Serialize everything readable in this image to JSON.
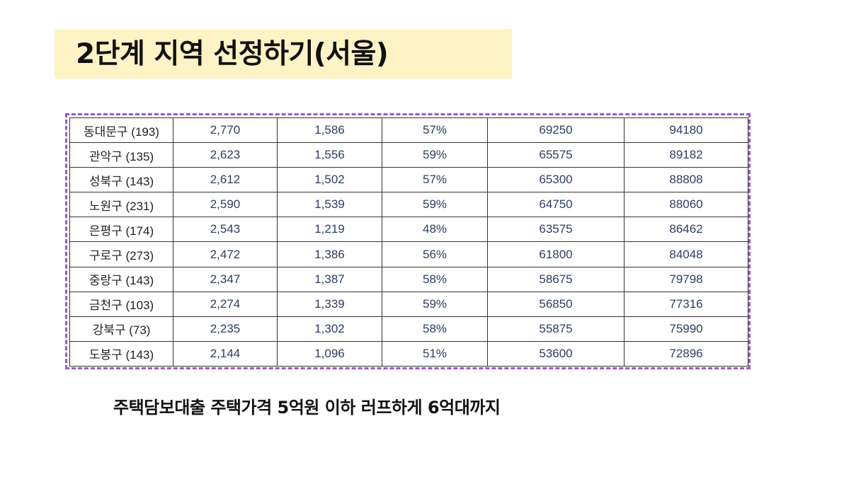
{
  "slide": {
    "title": "2단계 지역 선정하기(서울)",
    "caption": "주택담보대출 주택가격 5억원 이하 러프하게 6억대까지"
  },
  "colors": {
    "title_highlight": "#fdf3c4",
    "table_frame": "#9b59c9",
    "cell_text": "#2c3e64"
  },
  "table": {
    "rows": [
      {
        "district": "동대문구 (193)",
        "c1": "2,770",
        "c2": "1,586",
        "c3": "57%",
        "c4": "69250",
        "c5": "94180"
      },
      {
        "district": "관악구 (135)",
        "c1": "2,623",
        "c2": "1,556",
        "c3": "59%",
        "c4": "65575",
        "c5": "89182"
      },
      {
        "district": "성북구 (143)",
        "c1": "2,612",
        "c2": "1,502",
        "c3": "57%",
        "c4": "65300",
        "c5": "88808"
      },
      {
        "district": "노원구 (231)",
        "c1": "2,590",
        "c2": "1,539",
        "c3": "59%",
        "c4": "64750",
        "c5": "88060"
      },
      {
        "district": "은평구 (174)",
        "c1": "2,543",
        "c2": "1,219",
        "c3": "48%",
        "c4": "63575",
        "c5": "86462"
      },
      {
        "district": "구로구 (273)",
        "c1": "2,472",
        "c2": "1,386",
        "c3": "56%",
        "c4": "61800",
        "c5": "84048"
      },
      {
        "district": "중랑구 (143)",
        "c1": "2,347",
        "c2": "1,387",
        "c3": "58%",
        "c4": "58675",
        "c5": "79798"
      },
      {
        "district": "금천구 (103)",
        "c1": "2,274",
        "c2": "1,339",
        "c3": "59%",
        "c4": "56850",
        "c5": "77316"
      },
      {
        "district": "강북구 (73)",
        "c1": "2,235",
        "c2": "1,302",
        "c3": "58%",
        "c4": "55875",
        "c5": "75990"
      },
      {
        "district": "도봉구 (143)",
        "c1": "2,144",
        "c2": "1,096",
        "c3": "51%",
        "c4": "53600",
        "c5": "72896"
      }
    ]
  }
}
